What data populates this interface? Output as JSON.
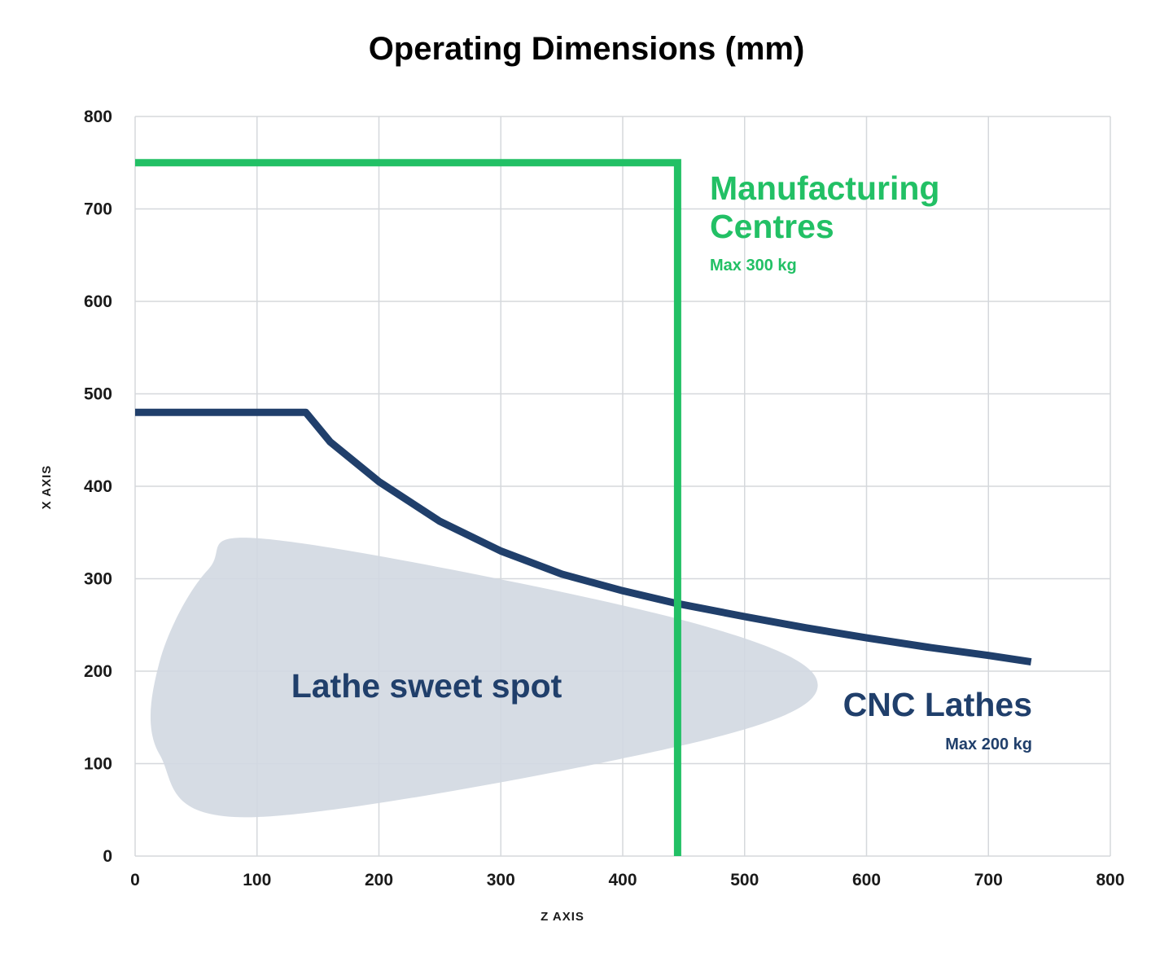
{
  "chart_data": {
    "type": "line",
    "title": "Operating Dimensions (mm)",
    "xlabel": "Z AXIS",
    "ylabel": "X AXIS",
    "xlim": [
      0,
      800
    ],
    "ylim": [
      0,
      800
    ],
    "xticks": [
      "0",
      "100",
      "200",
      "300",
      "400",
      "500",
      "600",
      "700",
      "800"
    ],
    "yticks": [
      "0",
      "100",
      "200",
      "300",
      "400",
      "500",
      "600",
      "700",
      "800"
    ],
    "grid": true,
    "colors": {
      "manufacturing": "#22c065",
      "lathes": "#203f6b",
      "sweet_spot": "#d2d8e1",
      "grid": "#d5d8dc"
    },
    "series": [
      {
        "name": "Manufacturing Centres",
        "note": "Max 300 kg",
        "x": [
          0,
          445,
          445
        ],
        "y": [
          750,
          750,
          0
        ]
      },
      {
        "name": "CNC Lathes",
        "note": "Max 200 kg",
        "x": [
          0,
          140,
          160,
          200,
          250,
          300,
          350,
          400,
          445,
          500,
          550,
          600,
          650,
          700,
          735
        ],
        "y": [
          480,
          480,
          448,
          405,
          362,
          330,
          305,
          287,
          273,
          259,
          247,
          236,
          226,
          217,
          210
        ]
      }
    ],
    "regions": [
      {
        "name": "Lathe sweet spot",
        "x": [
          115,
          450,
          560,
          450,
          95,
          20,
          20,
          60,
          115
        ],
        "y": [
          342,
          255,
          185,
          120,
          42,
          110,
          210,
          310,
          342
        ]
      }
    ],
    "annotations": {
      "manufacturing_title_line1": "Manufacturing",
      "manufacturing_title_line2": "Centres",
      "manufacturing_sub": "Max 300 kg",
      "lathes_title": "CNC Lathes",
      "lathes_sub": "Max 200 kg",
      "sweet_spot_label": "Lathe sweet spot"
    }
  }
}
